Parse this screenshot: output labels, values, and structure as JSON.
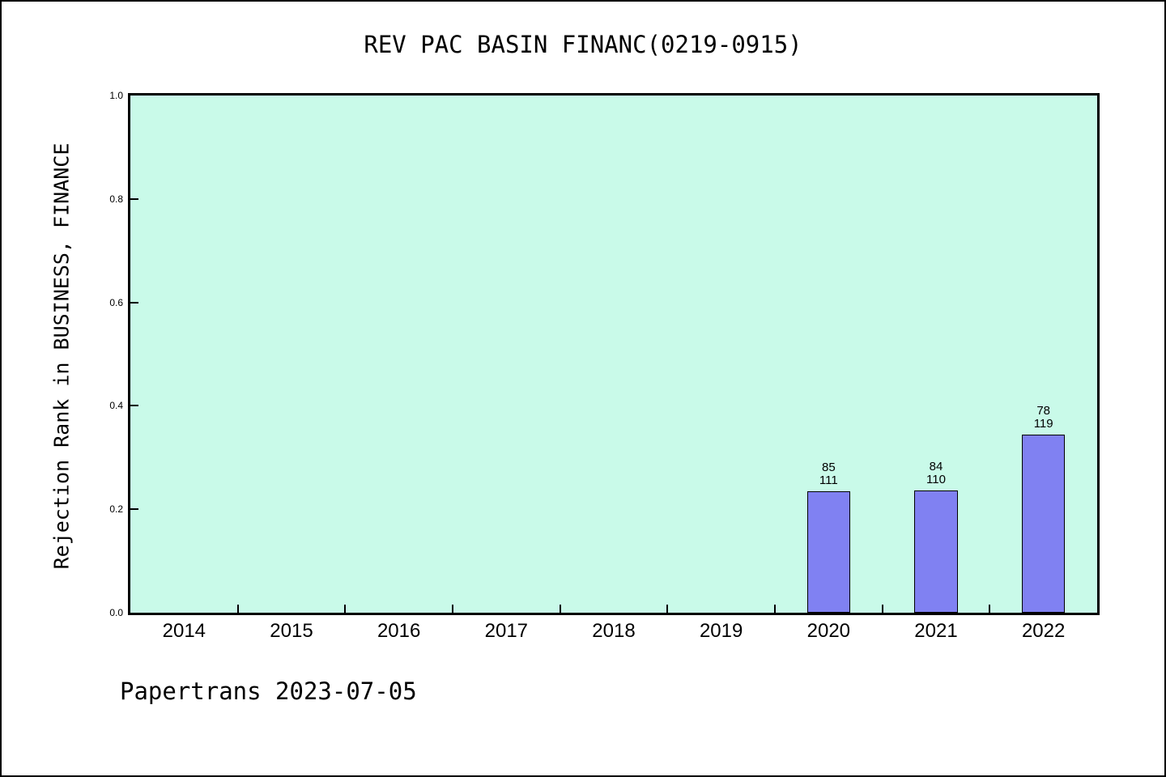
{
  "title": "REV PAC BASIN FINANC(0219-0915)",
  "footer": "Papertrans 2023-07-05",
  "colors": {
    "plot_background": "#C9FAE9",
    "bar_fill": "#8081F2",
    "bar_border": "#000000",
    "frame": "#000000",
    "text": "#000000"
  },
  "chart_data": {
    "type": "bar",
    "title": "REV PAC BASIN FINANC(0219-0915)",
    "xlabel": "",
    "ylabel": "Rejection Rank in BUSINESS, FINANCE",
    "categories": [
      "2014",
      "2015",
      "2016",
      "2017",
      "2018",
      "2019",
      "2020",
      "2021",
      "2022"
    ],
    "values": [
      null,
      null,
      null,
      null,
      null,
      null,
      0.234,
      0.236,
      0.344
    ],
    "bar_annotations": [
      {
        "category": "2020",
        "rank": "85",
        "total": "111",
        "value": 0.234
      },
      {
        "category": "2021",
        "rank": "84",
        "total": "110",
        "value": 0.236
      },
      {
        "category": "2022",
        "rank": "78",
        "total": "119",
        "value": 0.344
      }
    ],
    "ylim": [
      0.0,
      1.0
    ],
    "yticks": [
      "0.0",
      "0.2",
      "0.4",
      "0.6",
      "0.8",
      "1.0"
    ],
    "grid": false,
    "legend": false,
    "bar_width_fraction": 0.4
  }
}
